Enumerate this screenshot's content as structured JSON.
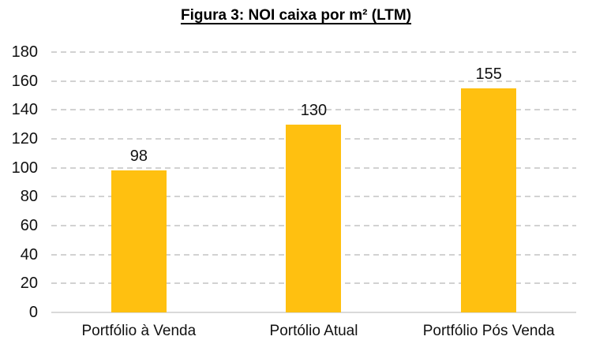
{
  "chart_data": {
    "type": "bar",
    "title": "Figura 3: NOI caixa por m² (LTM)",
    "categories": [
      "Portfólio à Venda",
      "Portólio Atual",
      "Portfólio Pós Venda"
    ],
    "values": [
      98,
      130,
      155
    ],
    "data_labels": [
      "98",
      "130",
      "155"
    ],
    "xlabel": "",
    "ylabel": "",
    "ylim": [
      0,
      180
    ],
    "yticks": [
      0,
      20,
      40,
      60,
      80,
      100,
      120,
      140,
      160,
      180
    ],
    "grid": "horizontal-dashed",
    "legend_position": "none",
    "bar_color": "#FFC010",
    "gridline_color": "#D2D2D2",
    "axis_line_color": "#D9D9D9",
    "text_color": "#111111",
    "background_color": "#FFFFFF"
  }
}
